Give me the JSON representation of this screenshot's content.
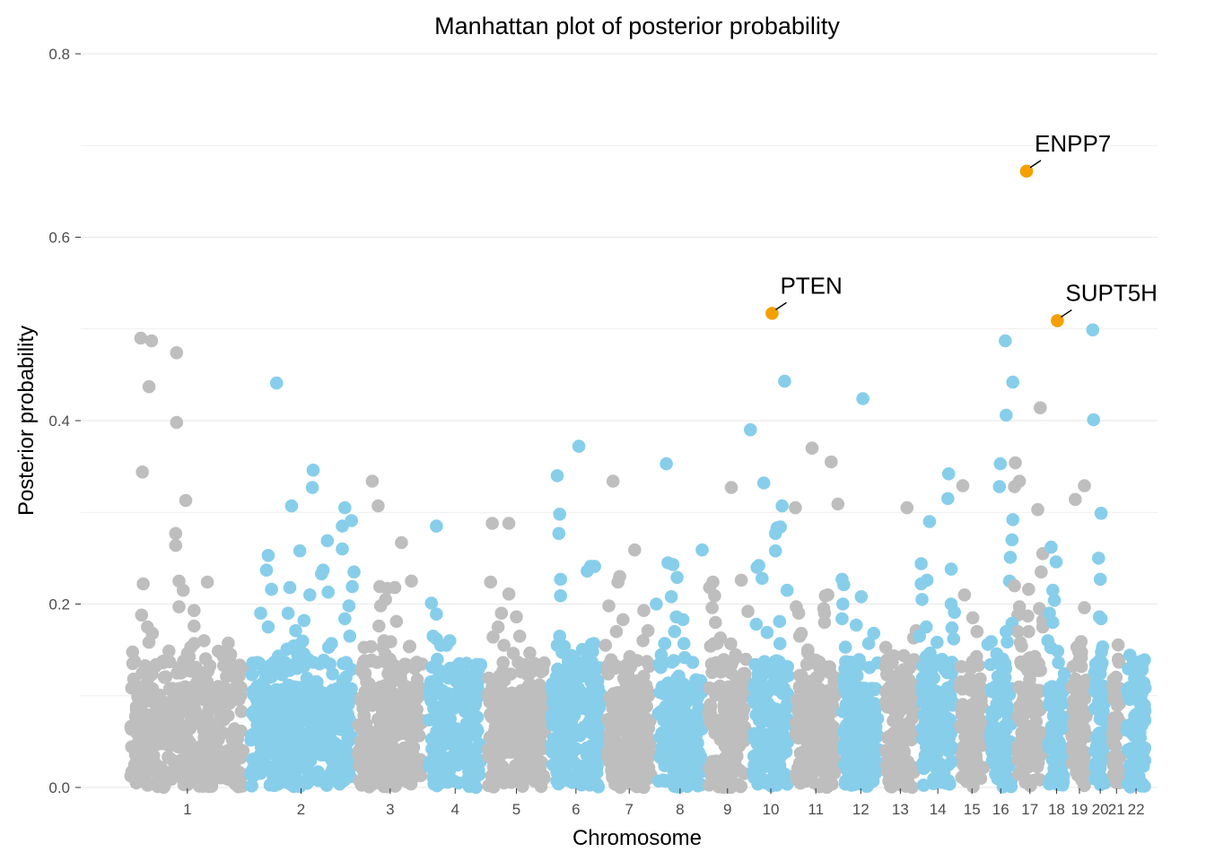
{
  "chart_data": {
    "type": "scatter",
    "title": "Manhattan plot of posterior probability",
    "xlabel": "Chromosome",
    "ylabel": "Posterior probability",
    "ylim": [
      0,
      0.8
    ],
    "yticks": [
      "0.0",
      "0.2",
      "0.4",
      "0.6",
      "0.8"
    ],
    "grid": true,
    "legend": "none",
    "colors": {
      "odd": "#bebebe",
      "even": "#87ceeb",
      "highlight": "#f5a000",
      "grid": "#ebebeb"
    },
    "chromosomes": [
      {
        "label": "1",
        "start": 0.0,
        "end": 14.4
      },
      {
        "label": "2",
        "start": 14.4,
        "end": 27.3
      },
      {
        "label": "3",
        "start": 27.3,
        "end": 35.8
      },
      {
        "label": "4",
        "start": 35.8,
        "end": 42.9
      },
      {
        "label": "5",
        "start": 42.9,
        "end": 50.5
      },
      {
        "label": "6",
        "start": 50.5,
        "end": 57.2
      },
      {
        "label": "7",
        "start": 57.2,
        "end": 63.3
      },
      {
        "label": "8",
        "start": 63.3,
        "end": 69.4
      },
      {
        "label": "9",
        "start": 69.4,
        "end": 74.7
      },
      {
        "label": "10",
        "start": 74.7,
        "end": 79.8
      },
      {
        "label": "11",
        "start": 79.8,
        "end": 85.5
      },
      {
        "label": "12",
        "start": 85.5,
        "end": 90.6
      },
      {
        "label": "13",
        "start": 90.6,
        "end": 95.0
      },
      {
        "label": "14",
        "start": 95.0,
        "end": 99.6
      },
      {
        "label": "15",
        "start": 99.6,
        "end": 103.2
      },
      {
        "label": "16",
        "start": 103.2,
        "end": 106.5
      },
      {
        "label": "17",
        "start": 106.5,
        "end": 110.2
      },
      {
        "label": "18",
        "start": 110.2,
        "end": 112.9
      },
      {
        "label": "19",
        "start": 112.9,
        "end": 115.7
      },
      {
        "label": "20",
        "start": 115.7,
        "end": 117.9
      },
      {
        "label": "21",
        "start": 117.9,
        "end": 119.6
      },
      {
        "label": "22",
        "start": 119.6,
        "end": 122.6
      }
    ],
    "peaks": [
      [
        1.6,
        0.49
      ],
      [
        2.9,
        0.487
      ],
      [
        2.6,
        0.437
      ],
      [
        1.8,
        0.344
      ],
      [
        1.9,
        0.222
      ],
      [
        1.7,
        0.188
      ],
      [
        2.4,
        0.175
      ],
      [
        3.0,
        0.168
      ],
      [
        5.9,
        0.474
      ],
      [
        5.9,
        0.398
      ],
      [
        7.0,
        0.313
      ],
      [
        5.8,
        0.277
      ],
      [
        5.8,
        0.264
      ],
      [
        6.2,
        0.225
      ],
      [
        6.7,
        0.215
      ],
      [
        6.2,
        0.197
      ],
      [
        8.0,
        0.193
      ],
      [
        9.6,
        0.224
      ],
      [
        8.0,
        0.176
      ],
      [
        9.2,
        0.16
      ],
      [
        17.9,
        0.441
      ],
      [
        16.9,
        0.253
      ],
      [
        16.7,
        0.237
      ],
      [
        17.3,
        0.216
      ],
      [
        16.0,
        0.19
      ],
      [
        19.5,
        0.218
      ],
      [
        19.3,
        0.19
      ],
      [
        16.9,
        0.175
      ],
      [
        20.2,
        0.171
      ],
      [
        20.7,
        0.258
      ],
      [
        22.3,
        0.346
      ],
      [
        22.2,
        0.327
      ],
      [
        21.9,
        0.21
      ],
      [
        23.5,
        0.237
      ],
      [
        23.3,
        0.233
      ],
      [
        24.0,
        0.269
      ],
      [
        24.1,
        0.213
      ],
      [
        19.7,
        0.307
      ],
      [
        24.5,
        0.157
      ],
      [
        21.2,
        0.182
      ],
      [
        26.1,
        0.305
      ],
      [
        26.9,
        0.291
      ],
      [
        25.8,
        0.285
      ],
      [
        25.8,
        0.26
      ],
      [
        26.6,
        0.198
      ],
      [
        27.2,
        0.235
      ],
      [
        27.0,
        0.219
      ],
      [
        26.1,
        0.184
      ],
      [
        26.7,
        0.165
      ],
      [
        29.4,
        0.334
      ],
      [
        30.1,
        0.307
      ],
      [
        30.3,
        0.219
      ],
      [
        31.2,
        0.217
      ],
      [
        32.1,
        0.218
      ],
      [
        31.0,
        0.205
      ],
      [
        30.4,
        0.198
      ],
      [
        30.2,
        0.176
      ],
      [
        30.8,
        0.16
      ],
      [
        32.9,
        0.267
      ],
      [
        32.3,
        0.181
      ],
      [
        34.1,
        0.225
      ],
      [
        33.9,
        0.154
      ],
      [
        36.5,
        0.201
      ],
      [
        37.1,
        0.189
      ],
      [
        37.1,
        0.285
      ],
      [
        37.1,
        0.162
      ],
      [
        36.7,
        0.165
      ],
      [
        38.7,
        0.16
      ],
      [
        38.3,
        0.155
      ],
      [
        43.8,
        0.288
      ],
      [
        45.8,
        0.288
      ],
      [
        45.8,
        0.211
      ],
      [
        43.6,
        0.224
      ],
      [
        43.9,
        0.164
      ],
      [
        44.5,
        0.175
      ],
      [
        44.9,
        0.19
      ],
      [
        46.7,
        0.186
      ],
      [
        45.2,
        0.155
      ],
      [
        47.1,
        0.165
      ],
      [
        51.6,
        0.34
      ],
      [
        51.9,
        0.298
      ],
      [
        51.8,
        0.277
      ],
      [
        52.0,
        0.227
      ],
      [
        52.0,
        0.209
      ],
      [
        51.9,
        0.165
      ],
      [
        51.6,
        0.155
      ],
      [
        54.2,
        0.372
      ],
      [
        53.3,
        0.144
      ],
      [
        55.6,
        0.241
      ],
      [
        56.1,
        0.241
      ],
      [
        55.2,
        0.236
      ],
      [
        56.0,
        0.157
      ],
      [
        58.3,
        0.334
      ],
      [
        59.1,
        0.23
      ],
      [
        58.9,
        0.224
      ],
      [
        57.8,
        0.198
      ],
      [
        58.7,
        0.17
      ],
      [
        59.5,
        0.183
      ],
      [
        60.9,
        0.259
      ],
      [
        57.4,
        0.155
      ],
      [
        62.0,
        0.193
      ],
      [
        63.5,
        0.2
      ],
      [
        62.5,
        0.171
      ],
      [
        61.9,
        0.16
      ],
      [
        64.7,
        0.353
      ],
      [
        64.9,
        0.245
      ],
      [
        65.5,
        0.243
      ],
      [
        65.3,
        0.208
      ],
      [
        66.0,
        0.229
      ],
      [
        65.9,
        0.186
      ],
      [
        65.7,
        0.17
      ],
      [
        66.7,
        0.183
      ],
      [
        64.5,
        0.157
      ],
      [
        69.0,
        0.259
      ],
      [
        70.3,
        0.224
      ],
      [
        70.5,
        0.209
      ],
      [
        69.9,
        0.218
      ],
      [
        70.2,
        0.196
      ],
      [
        70.6,
        0.18
      ],
      [
        70.8,
        0.157
      ],
      [
        71.2,
        0.163
      ],
      [
        70.0,
        0.154
      ],
      [
        72.5,
        0.327
      ],
      [
        73.7,
        0.226
      ],
      [
        74.8,
        0.39
      ],
      [
        74.5,
        0.192
      ],
      [
        75.8,
        0.242
      ],
      [
        75.6,
        0.24
      ],
      [
        76.2,
        0.228
      ],
      [
        75.5,
        0.178
      ],
      [
        76.4,
        0.332
      ],
      [
        76.8,
        0.169
      ],
      [
        78.9,
        0.443
      ],
      [
        78.6,
        0.307
      ],
      [
        78.4,
        0.284
      ],
      [
        78.0,
        0.283
      ],
      [
        77.8,
        0.277
      ],
      [
        77.8,
        0.258
      ],
      [
        79.2,
        0.215
      ],
      [
        78.3,
        0.181
      ],
      [
        80.3,
        0.197
      ],
      [
        80.6,
        0.19
      ],
      [
        80.7,
        0.165
      ],
      [
        80.9,
        0.168
      ],
      [
        80.2,
        0.305
      ],
      [
        82.2,
        0.37
      ],
      [
        83.8,
        0.209
      ],
      [
        84.1,
        0.21
      ],
      [
        83.6,
        0.195
      ],
      [
        83.7,
        0.19
      ],
      [
        83.7,
        0.18
      ],
      [
        84.5,
        0.355
      ],
      [
        85.3,
        0.309
      ],
      [
        85.8,
        0.227
      ],
      [
        86.0,
        0.221
      ],
      [
        85.9,
        0.2
      ],
      [
        85.8,
        0.184
      ],
      [
        86.2,
        0.153
      ],
      [
        88.3,
        0.424
      ],
      [
        88.1,
        0.208
      ],
      [
        87.5,
        0.177
      ],
      [
        89.6,
        0.168
      ],
      [
        89.0,
        0.157
      ],
      [
        93.6,
        0.305
      ],
      [
        94.4,
        0.163
      ],
      [
        94.7,
        0.171
      ],
      [
        95.3,
        0.244
      ],
      [
        95.3,
        0.222
      ],
      [
        96.0,
        0.226
      ],
      [
        95.4,
        0.205
      ],
      [
        96.3,
        0.29
      ],
      [
        95.9,
        0.175
      ],
      [
        95.1,
        0.165
      ],
      [
        98.6,
        0.342
      ],
      [
        98.5,
        0.315
      ],
      [
        98.9,
        0.238
      ],
      [
        98.9,
        0.2
      ],
      [
        99.3,
        0.191
      ],
      [
        99.0,
        0.174
      ],
      [
        99.2,
        0.162
      ],
      [
        100.3,
        0.329
      ],
      [
        100.5,
        0.21
      ],
      [
        101.5,
        0.185
      ],
      [
        102.0,
        0.17
      ],
      [
        103.7,
        0.159
      ],
      [
        103.3,
        0.156
      ],
      [
        104.8,
        0.353
      ],
      [
        104.7,
        0.328
      ],
      [
        105.4,
        0.487
      ],
      [
        105.5,
        0.406
      ],
      [
        106.3,
        0.442
      ],
      [
        106.6,
        0.354
      ],
      [
        106.5,
        0.328
      ],
      [
        106.3,
        0.292
      ],
      [
        106.2,
        0.27
      ],
      [
        106.0,
        0.251
      ],
      [
        105.9,
        0.225
      ],
      [
        106.5,
        0.22
      ],
      [
        107.1,
        0.334
      ],
      [
        107.1,
        0.197
      ],
      [
        106.9,
        0.188
      ],
      [
        106.2,
        0.179
      ],
      [
        106.9,
        0.17
      ],
      [
        105.5,
        0.17
      ],
      [
        107.2,
        0.158
      ],
      [
        108.2,
        0.216
      ],
      [
        108.1,
        0.187
      ],
      [
        108.2,
        0.17
      ],
      [
        109.6,
        0.414
      ],
      [
        109.3,
        0.303
      ],
      [
        109.9,
        0.255
      ],
      [
        109.7,
        0.235
      ],
      [
        109.5,
        0.195
      ],
      [
        109.9,
        0.182
      ],
      [
        109.9,
        0.175
      ],
      [
        110.9,
        0.262
      ],
      [
        111.1,
        0.215
      ],
      [
        111.3,
        0.204
      ],
      [
        111.5,
        0.246
      ],
      [
        110.7,
        0.19
      ],
      [
        111.1,
        0.18
      ],
      [
        110.5,
        0.16
      ],
      [
        113.8,
        0.314
      ],
      [
        114.9,
        0.329
      ],
      [
        114.9,
        0.196
      ],
      [
        114.5,
        0.159
      ],
      [
        114.0,
        0.153
      ],
      [
        115.9,
        0.499
      ],
      [
        116.0,
        0.401
      ],
      [
        116.9,
        0.299
      ],
      [
        116.6,
        0.25
      ],
      [
        116.8,
        0.227
      ],
      [
        116.7,
        0.186
      ],
      [
        116.9,
        0.184
      ],
      [
        116.8,
        0.124
      ]
    ],
    "highlights": [
      {
        "label": "PTEN",
        "x": 77.4,
        "y": 0.517
      },
      {
        "label": "ENPP7",
        "x": 107.95,
        "y": 0.672
      },
      {
        "label": "SUPT5H",
        "x": 111.65,
        "y": 0.509
      }
    ]
  }
}
